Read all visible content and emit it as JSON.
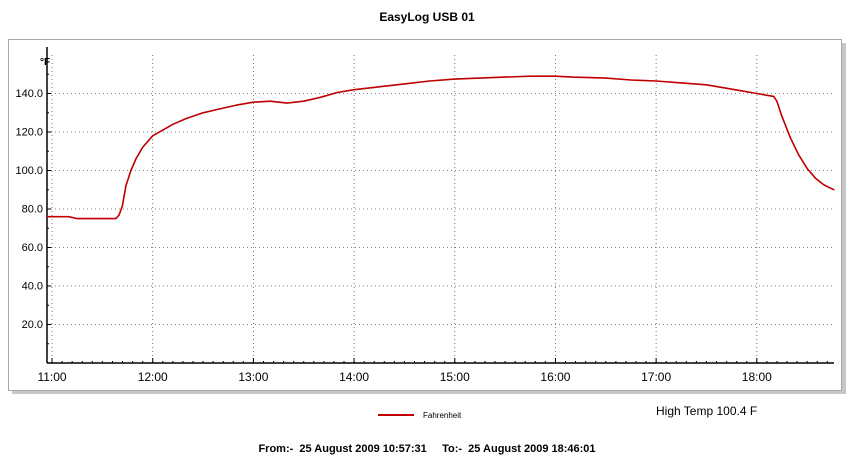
{
  "title": "EasyLog USB 01",
  "footer": {
    "from_label": "From:-",
    "from_value": "25 August 2009 10:57:31",
    "to_label": "To:-",
    "to_value": "25 August 2009 18:46:01"
  },
  "high_temp": "High Temp 100.4 F",
  "colors": {
    "series": "#c00000",
    "grid": "#555555",
    "axis": "#000000"
  },
  "chart_data": {
    "type": "line",
    "title": "EasyLog USB 01",
    "xlabel": "",
    "ylabel": "°F",
    "x_ticks": [
      "11:00",
      "12:00",
      "13:00",
      "14:00",
      "15:00",
      "16:00",
      "17:00",
      "18:00"
    ],
    "x_range": [
      "10:57",
      "18:46"
    ],
    "y_ticks": [
      "20.0",
      "40.0",
      "60.0",
      "80.0",
      "100.0",
      "120.0",
      "140.0"
    ],
    "ylim": [
      0,
      160
    ],
    "grid": true,
    "legend": "bottom-center",
    "series": [
      {
        "name": "Fahrenheit",
        "color": "#c00000",
        "points": [
          [
            "10:57",
            76.0
          ],
          [
            "11:10",
            76.0
          ],
          [
            "11:15",
            75.0
          ],
          [
            "11:30",
            75.0
          ],
          [
            "11:38",
            75.0
          ],
          [
            "11:40",
            77.0
          ],
          [
            "11:42",
            82.0
          ],
          [
            "11:44",
            92.0
          ],
          [
            "11:47",
            100.0
          ],
          [
            "11:50",
            106.0
          ],
          [
            "11:54",
            112.0
          ],
          [
            "12:00",
            118.0
          ],
          [
            "12:06",
            121.0
          ],
          [
            "12:12",
            124.0
          ],
          [
            "12:20",
            127.0
          ],
          [
            "12:30",
            130.0
          ],
          [
            "12:40",
            132.0
          ],
          [
            "12:50",
            134.0
          ],
          [
            "13:00",
            135.5
          ],
          [
            "13:10",
            136.0
          ],
          [
            "13:20",
            135.0
          ],
          [
            "13:30",
            136.0
          ],
          [
            "13:40",
            138.0
          ],
          [
            "13:50",
            140.5
          ],
          [
            "14:00",
            142.0
          ],
          [
            "14:15",
            143.5
          ],
          [
            "14:30",
            145.0
          ],
          [
            "14:45",
            146.5
          ],
          [
            "15:00",
            147.5
          ],
          [
            "15:15",
            148.0
          ],
          [
            "15:30",
            148.5
          ],
          [
            "15:45",
            149.0
          ],
          [
            "16:00",
            149.0
          ],
          [
            "16:10",
            148.5
          ],
          [
            "16:30",
            148.0
          ],
          [
            "16:45",
            147.0
          ],
          [
            "17:00",
            146.5
          ],
          [
            "17:15",
            145.5
          ],
          [
            "17:30",
            144.5
          ],
          [
            "17:40",
            143.0
          ],
          [
            "17:50",
            141.5
          ],
          [
            "18:00",
            140.0
          ],
          [
            "18:10",
            138.5
          ],
          [
            "18:12",
            136.0
          ],
          [
            "18:15",
            128.0
          ],
          [
            "18:20",
            117.0
          ],
          [
            "18:25",
            108.0
          ],
          [
            "18:30",
            101.0
          ],
          [
            "18:35",
            96.0
          ],
          [
            "18:40",
            92.5
          ],
          [
            "18:46",
            90.0
          ]
        ]
      }
    ]
  }
}
